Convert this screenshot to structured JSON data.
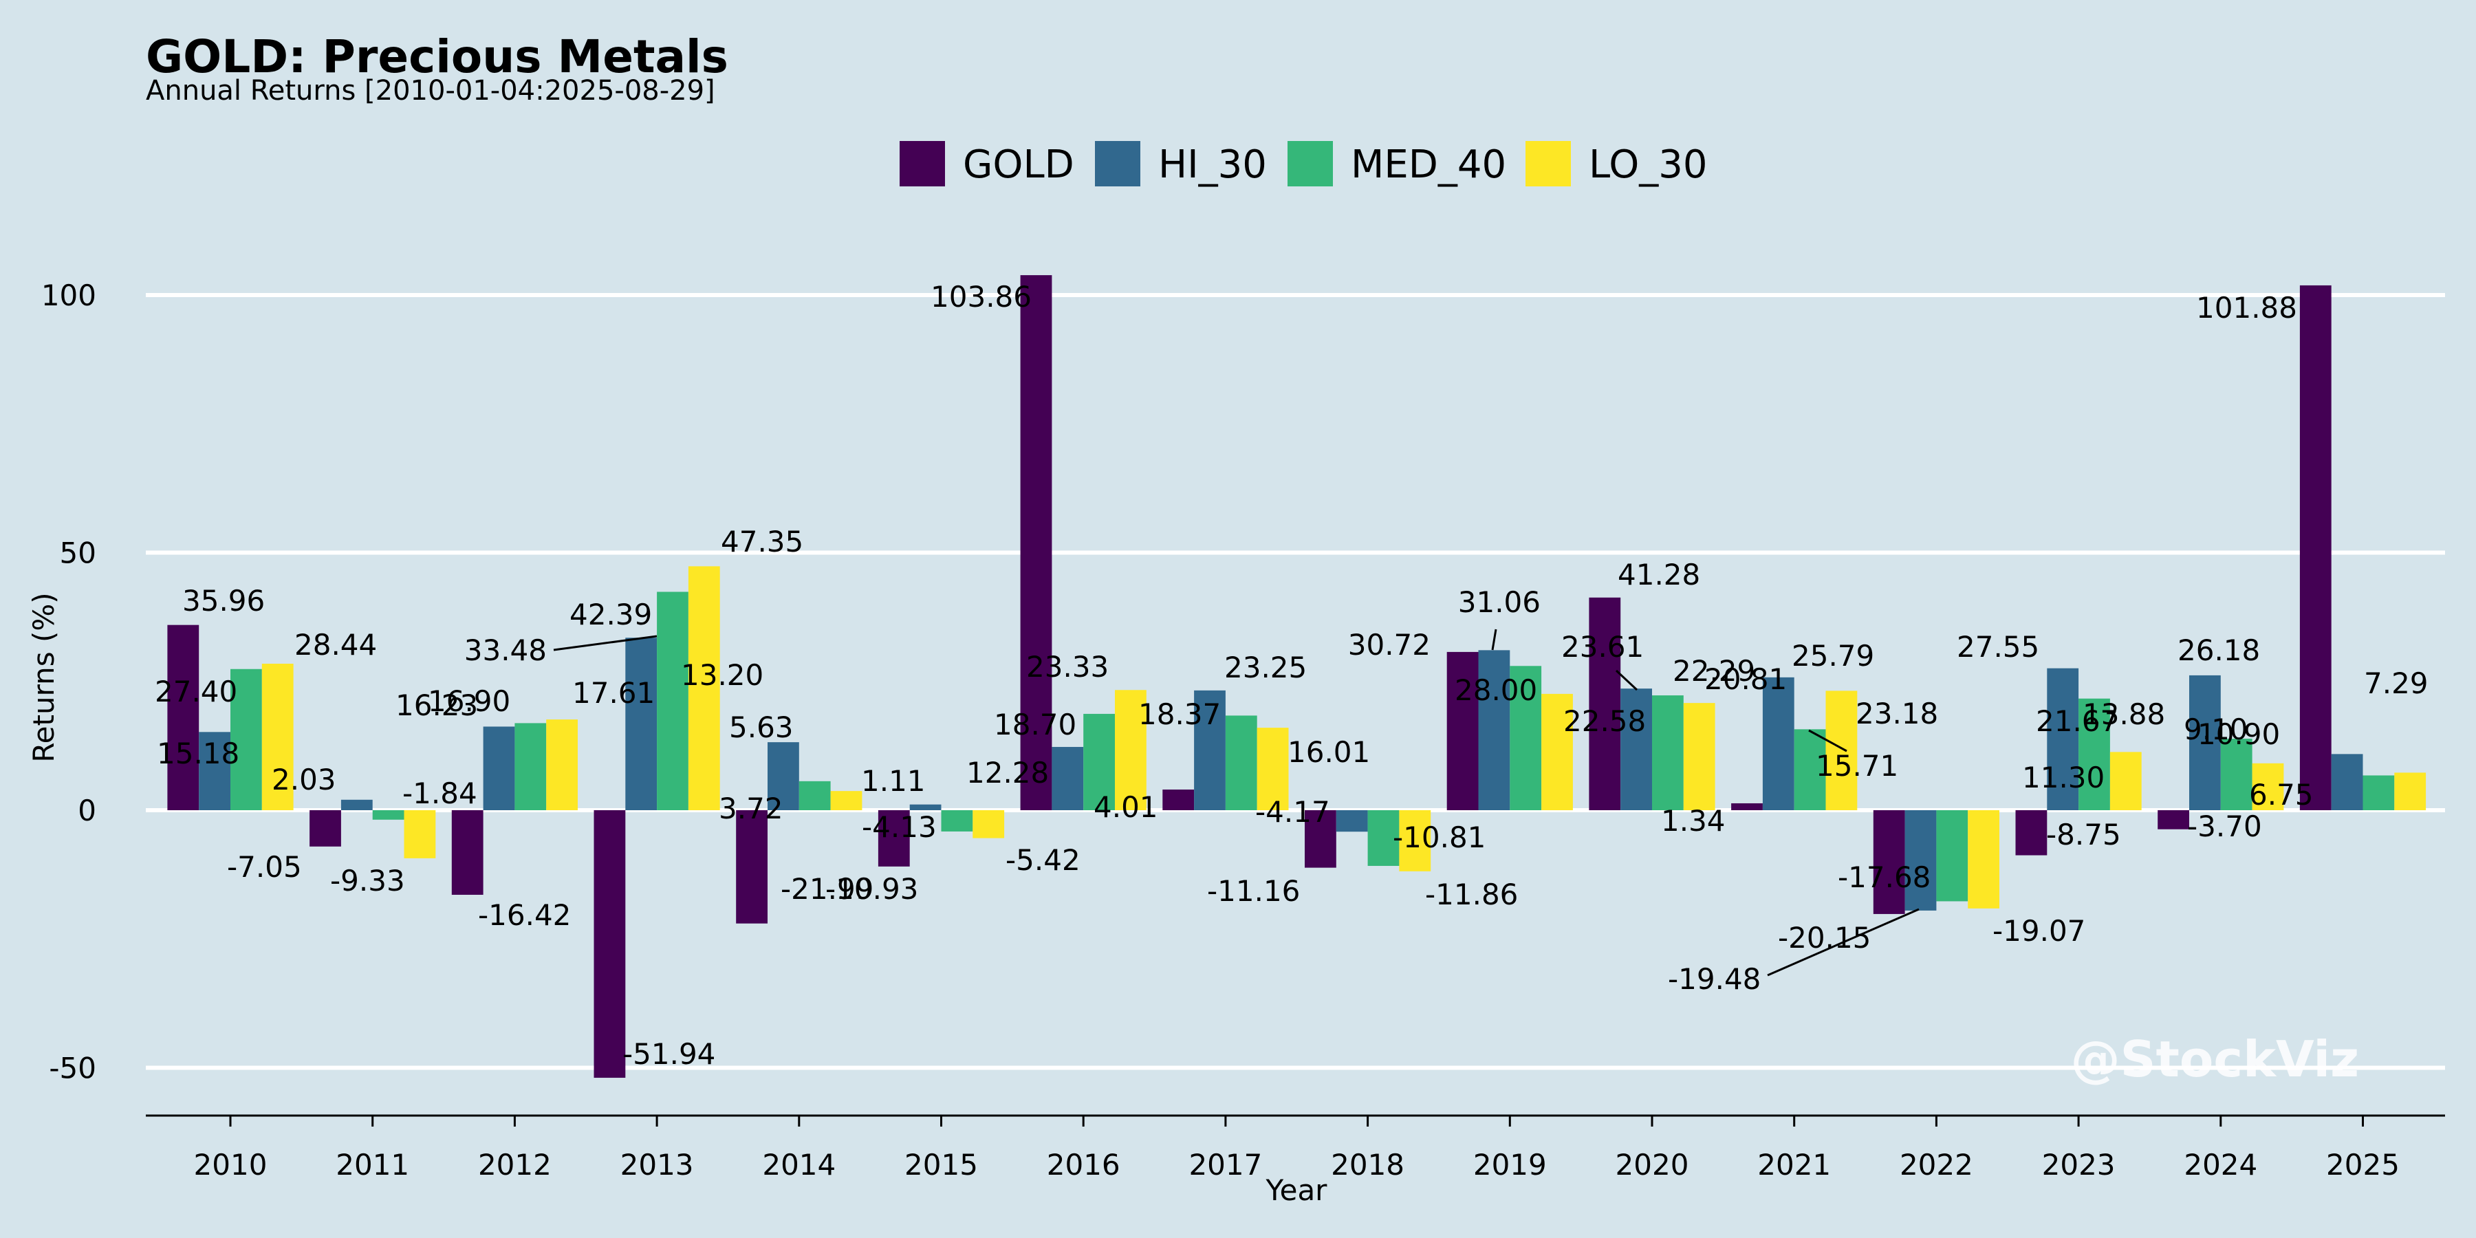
{
  "chart_data": {
    "type": "bar",
    "title": "GOLD: Precious Metals",
    "subtitle": "Annual Returns [2010-01-04:2025-08-29]",
    "xlabel": "Year",
    "ylabel": "Returns (%)",
    "ylim": [
      -60,
      120
    ],
    "yticks": [
      "-50",
      "0",
      "50",
      "100"
    ],
    "grid": "horizontal",
    "legend_position": "top-center",
    "watermark": "@StockViz",
    "categories": [
      "2010",
      "2011",
      "2012",
      "2013",
      "2014",
      "2015",
      "2016",
      "2017",
      "2018",
      "2019",
      "2020",
      "2021",
      "2022",
      "2023",
      "2024",
      "2025"
    ],
    "series": [
      {
        "name": "GOLD",
        "color": "#440154",
        "values": [
          35.96,
          -7.05,
          -16.42,
          -51.94,
          -21.99,
          -10.93,
          103.86,
          4.01,
          -11.16,
          30.72,
          41.28,
          1.34,
          -20.15,
          -8.75,
          -3.7,
          101.88
        ],
        "labels": [
          "35.96",
          "-7.05",
          "-16.42",
          "-51.94",
          "-21.99",
          "-10.93",
          "103.86",
          "4.01",
          "-11.16",
          "30.72",
          "41.28",
          "1.34",
          "-20.15",
          "-8.75",
          "-3.70",
          "101.88"
        ]
      },
      {
        "name": "HI_30",
        "color": "#31688e",
        "values": [
          15.18,
          2.03,
          16.23,
          33.48,
          13.2,
          1.11,
          12.28,
          23.25,
          -4.17,
          31.06,
          23.61,
          25.79,
          -19.48,
          27.55,
          26.18,
          10.9
        ],
        "labels": [
          "15.18",
          "2.03",
          "16.23",
          "33.48",
          "13.20",
          "1.11",
          "12.28",
          "23.25",
          "-4.17",
          "31.06",
          "23.61",
          "25.79",
          "-19.48",
          "27.55",
          "26.18",
          "10.90"
        ]
      },
      {
        "name": "MED_40",
        "color": "#35b779",
        "values": [
          27.4,
          -1.84,
          16.9,
          42.39,
          5.63,
          -4.13,
          18.7,
          18.37,
          -10.81,
          28.0,
          22.29,
          15.71,
          -17.68,
          21.67,
          13.88,
          6.75
        ],
        "labels": [
          "27.40",
          "-1.84",
          "16.90",
          "42.39",
          "5.63",
          "-4.13",
          "18.70",
          "18.37",
          "-10.81",
          "28.00",
          "22.29",
          "15.71",
          "-17.68",
          "21.67",
          "13.88",
          "6.75"
        ]
      },
      {
        "name": "LO_30",
        "color": "#fde725",
        "values": [
          28.44,
          -9.33,
          17.61,
          47.35,
          3.72,
          -5.42,
          23.33,
          16.01,
          -11.86,
          22.58,
          20.81,
          23.18,
          -19.07,
          11.3,
          9.1,
          7.29
        ],
        "labels": [
          "28.44",
          "-9.33",
          "17.61",
          "47.35",
          "3.72",
          "-5.42",
          "23.33",
          "16.01",
          "-11.86",
          "22.58",
          "20.81",
          "23.18",
          "-19.07",
          "11.30",
          "9.10",
          "7.29"
        ]
      }
    ]
  }
}
